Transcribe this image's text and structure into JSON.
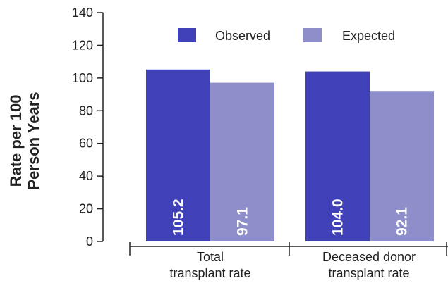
{
  "chart_data": {
    "type": "bar",
    "ylabel": [
      "Rate per 100",
      "Person Years"
    ],
    "ylim": [
      0,
      140
    ],
    "yticks": [
      0,
      20,
      40,
      60,
      80,
      100,
      120,
      140
    ],
    "categories": [
      [
        "Total",
        "transplant rate"
      ],
      [
        "Deceased donor",
        "transplant rate"
      ]
    ],
    "series": [
      {
        "name": "Observed",
        "color": "#4041b8",
        "values": [
          105.2,
          104.0
        ],
        "labels": [
          "105.2",
          "104.0"
        ]
      },
      {
        "name": "Expected",
        "color": "#8e8ecb",
        "values": [
          97.1,
          92.1
        ],
        "labels": [
          "97.1",
          "92.1"
        ]
      }
    ],
    "legend": "top-right",
    "grid": false
  }
}
